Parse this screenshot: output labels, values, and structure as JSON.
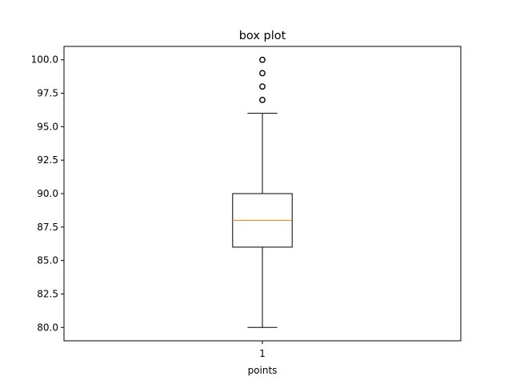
{
  "chart_data": {
    "type": "box",
    "title": "box plot",
    "xlabel": "points",
    "ylabel": "",
    "categories": [
      "1"
    ],
    "ylim": [
      79.0,
      101.0
    ],
    "y_ticks": [
      "80.0",
      "82.5",
      "85.0",
      "87.5",
      "90.0",
      "92.5",
      "95.0",
      "97.5",
      "100.0"
    ],
    "boxes": [
      {
        "category": "1",
        "whisker_low": 80,
        "q1": 86,
        "median": 88,
        "q3": 90,
        "whisker_high": 96,
        "outliers": [
          97,
          98,
          99,
          100
        ]
      }
    ],
    "grid": false,
    "colors": {
      "box": "#000000",
      "median": "#ff7f0e",
      "outlier": "#000000",
      "axes": "#000000"
    }
  }
}
